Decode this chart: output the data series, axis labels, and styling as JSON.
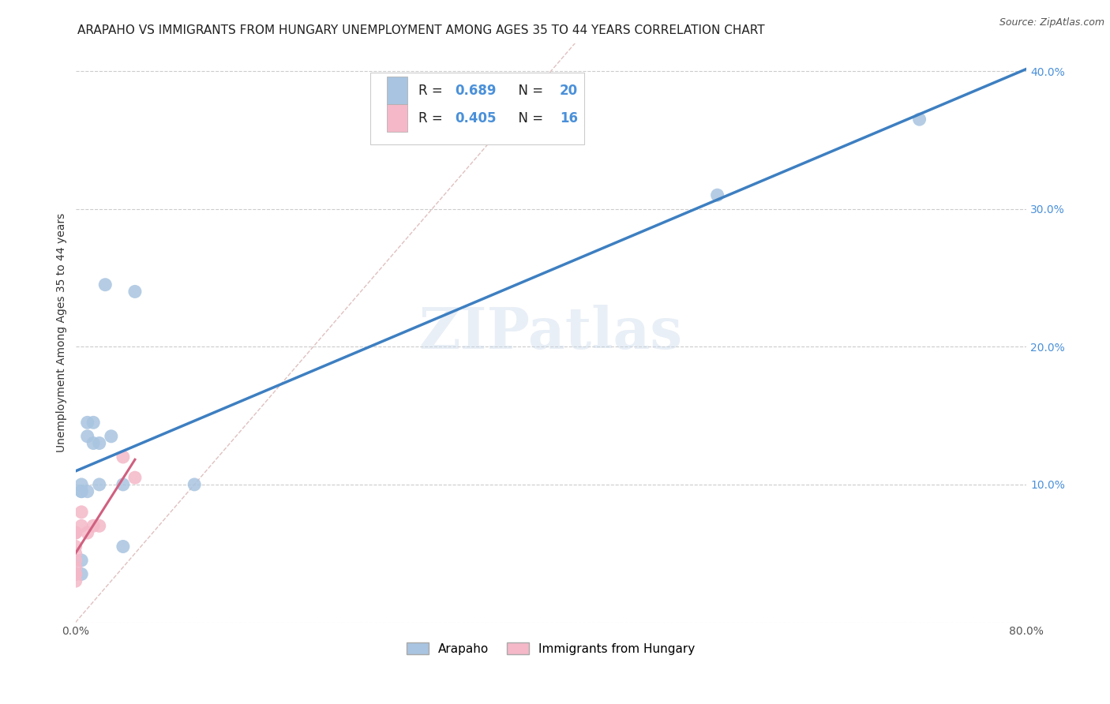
{
  "title": "ARAPAHO VS IMMIGRANTS FROM HUNGARY UNEMPLOYMENT AMONG AGES 35 TO 44 YEARS CORRELATION CHART",
  "source": "Source: ZipAtlas.com",
  "ylabel": "Unemployment Among Ages 35 to 44 years",
  "xlim": [
    0,
    0.8
  ],
  "ylim": [
    0,
    0.42
  ],
  "xticks": [
    0.0,
    0.1,
    0.2,
    0.3,
    0.4,
    0.5,
    0.6,
    0.7,
    0.8
  ],
  "xticklabels": [
    "0.0%",
    "",
    "",
    "",
    "",
    "",
    "",
    "",
    "80.0%"
  ],
  "yticks": [
    0.0,
    0.1,
    0.2,
    0.3,
    0.4
  ],
  "right_yticklabels": [
    "",
    "10.0%",
    "20.0%",
    "30.0%",
    "40.0%"
  ],
  "arapaho_x": [
    0.005,
    0.005,
    0.005,
    0.005,
    0.005,
    0.01,
    0.01,
    0.01,
    0.015,
    0.015,
    0.02,
    0.02,
    0.025,
    0.03,
    0.04,
    0.04,
    0.05,
    0.1,
    0.54,
    0.71
  ],
  "arapaho_y": [
    0.095,
    0.095,
    0.1,
    0.035,
    0.045,
    0.135,
    0.145,
    0.095,
    0.13,
    0.145,
    0.13,
    0.1,
    0.245,
    0.135,
    0.1,
    0.055,
    0.24,
    0.1,
    0.31,
    0.365
  ],
  "hungary_x": [
    0.0,
    0.0,
    0.0,
    0.0,
    0.0,
    0.0,
    0.0,
    0.0,
    0.0,
    0.005,
    0.005,
    0.01,
    0.015,
    0.02,
    0.04,
    0.05
  ],
  "hungary_y": [
    0.065,
    0.065,
    0.055,
    0.05,
    0.045,
    0.04,
    0.035,
    0.035,
    0.03,
    0.07,
    0.08,
    0.065,
    0.07,
    0.07,
    0.12,
    0.105
  ],
  "arapaho_R": 0.689,
  "arapaho_N": 20,
  "hungary_R": 0.405,
  "hungary_N": 16,
  "arapaho_color": "#a8c4e0",
  "hungary_color": "#f4b8c8",
  "arapaho_line_color": "#3d7fc1",
  "hungary_line_color": "#d06080",
  "diagonal_color": "#e0c0c0",
  "watermark": "ZIPatlas",
  "background_color": "#ffffff",
  "grid_color": "#cccccc",
  "right_tick_color": "#4a90d9",
  "title_fontsize": 11,
  "label_fontsize": 10,
  "tick_fontsize": 10,
  "legend_fontsize": 12
}
